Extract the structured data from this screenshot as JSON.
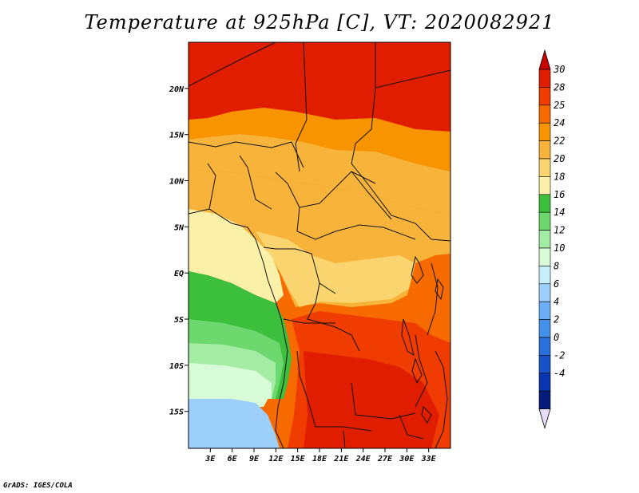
{
  "title": "Temperature at 925hPa [C], VT: 2020082921",
  "credit": "GrADS: IGES/COLA",
  "map": {
    "lon_range": [
      0,
      36
    ],
    "lat_range": [
      -19,
      25
    ],
    "lon_ticks": [
      "3E",
      "6E",
      "9E",
      "12E",
      "15E",
      "18E",
      "21E",
      "24E",
      "27E",
      "30E",
      "33E"
    ],
    "lat_ticks": [
      "20N",
      "15N",
      "10N",
      "5N",
      "EQ",
      "5S",
      "10S",
      "15S"
    ]
  },
  "colorbar": {
    "labels": [
      "30",
      "28",
      "25",
      "24",
      "22",
      "20",
      "18",
      "16",
      "14",
      "12",
      "10",
      "8",
      "6",
      "4",
      "2",
      "0",
      "-2",
      "-4"
    ],
    "colors": [
      "#e11d00",
      "#f03c00",
      "#f76a00",
      "#f89400",
      "#f8b43a",
      "#fad56f",
      "#fbf0a8",
      "#3cbf3c",
      "#6dd86d",
      "#a4eba4",
      "#d8fcd8",
      "#c8f0fc",
      "#9cd0fb",
      "#6caef5",
      "#4491eb",
      "#2870dc",
      "#1752c8",
      "#0a35b0",
      "#061e7a"
    ],
    "top_arrow_color": "#c80000",
    "bottom_arrow_color": "#e6dcf8"
  }
}
